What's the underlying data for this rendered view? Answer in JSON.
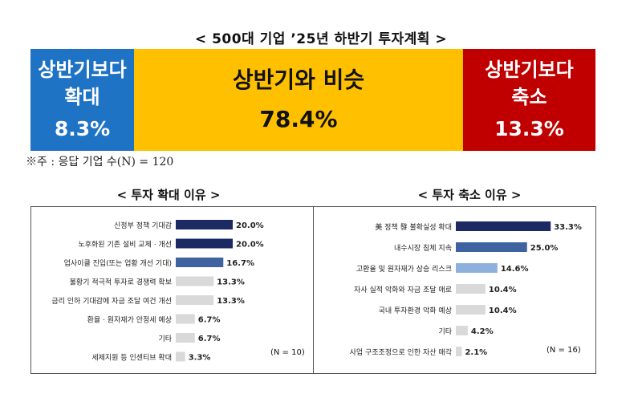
{
  "title": "< 500대 기업 ’25년 하반기 투자계획 >",
  "bands": [
    {
      "label_lines": [
        "상반기보다",
        "확대"
      ],
      "value": "8.3%",
      "color": "#1f73c5"
    },
    {
      "label_lines": [
        "상반기와 비슷"
      ],
      "value": "78.4%",
      "color": "#ffc000"
    },
    {
      "label_lines": [
        "상반기보다",
        "축소"
      ],
      "value": "13.3%",
      "color": "#c00000"
    }
  ],
  "note": "※주 : 응답 기업 수(N) = 120",
  "colors": {
    "navy": "#1b2a63",
    "blue": "#3f63a0",
    "light_blue": "#8fb0dc",
    "gray": "#d9d9d9"
  },
  "chart_data": [
    {
      "type": "bar",
      "orientation": "horizontal",
      "title": "< 투자 확대 이유 >",
      "note": "(N = 10)",
      "categories": [
        "신정부 정책 기대감",
        "노후화된 기존 설비 교체 · 개선",
        "업사이클 진입(또는 업황 개선 기대)",
        "불황기 적극적 투자로 경쟁력 확보",
        "금리 인하 기대감에 자금 조달 여건 개선",
        "환율 · 원자재가 안정세 예상",
        "기타",
        "세제지원 등 인센티브 확대"
      ],
      "values": [
        20.0,
        20.0,
        16.7,
        13.3,
        13.3,
        6.7,
        6.7,
        3.3
      ],
      "value_labels": [
        "20.0%",
        "20.0%",
        "16.7%",
        "13.3%",
        "13.3%",
        "6.7%",
        "6.7%",
        "3.3%"
      ],
      "bar_colors": [
        "#1b2a63",
        "#1b2a63",
        "#3f63a0",
        "#d9d9d9",
        "#d9d9d9",
        "#d9d9d9",
        "#d9d9d9",
        "#d9d9d9"
      ]
    },
    {
      "type": "bar",
      "orientation": "horizontal",
      "title": "< 투자 축소 이유 >",
      "note": "(N = 16)",
      "categories": [
        "美 정책 發 불확실성 확대",
        "내수시장 침체 지속",
        "고환율 및 원자재가 상승 리스크",
        "자사 실적 악화와 자금 조달 애로",
        "국내 투자환경 악화 예상",
        "기타",
        "사업 구조조정으로 인한 자산 매각"
      ],
      "values": [
        33.3,
        25.0,
        14.6,
        10.4,
        10.4,
        4.2,
        2.1
      ],
      "value_labels": [
        "33.3%",
        "25.0%",
        "14.6%",
        "10.4%",
        "10.4%",
        "4.2%",
        "2.1%"
      ],
      "bar_colors": [
        "#1b2a63",
        "#3f63a0",
        "#8fb0dc",
        "#d9d9d9",
        "#d9d9d9",
        "#d9d9d9",
        "#d9d9d9"
      ]
    }
  ]
}
